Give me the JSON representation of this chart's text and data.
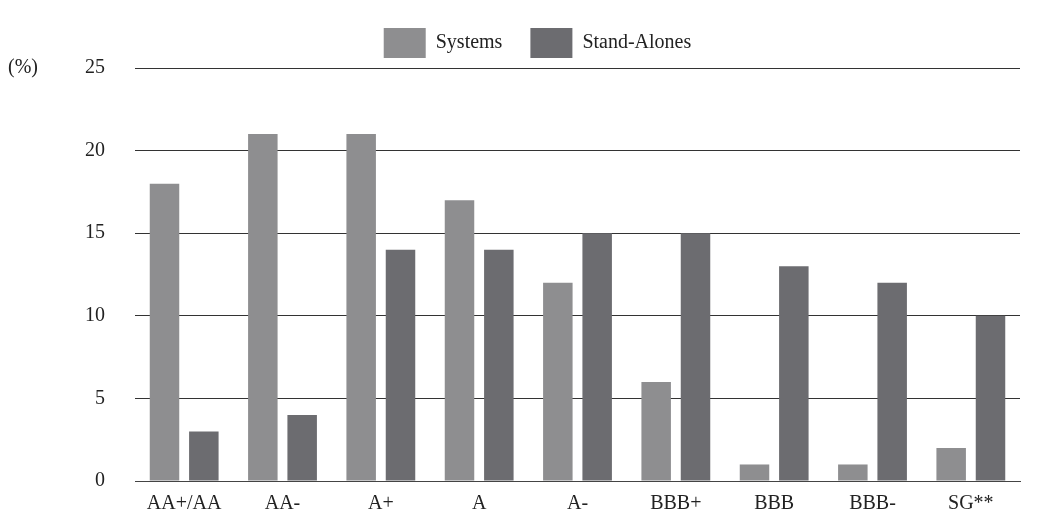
{
  "chart_data": {
    "type": "bar",
    "ylabel": "(%)",
    "categories": [
      "AA+/AA",
      "AA-",
      "A+",
      "A",
      "A-",
      "BBB+",
      "BBB",
      "BBB-",
      "SG**"
    ],
    "series": [
      {
        "name": "Systems",
        "color": "#8e8e90",
        "values": [
          18,
          21,
          21,
          17,
          12,
          6,
          1,
          1,
          2
        ]
      },
      {
        "name": "Stand-Alones",
        "color": "#6c6c70",
        "values": [
          3,
          4,
          14,
          14,
          15,
          15,
          13,
          12,
          10
        ]
      }
    ],
    "ylim": [
      0,
      25
    ],
    "yticks": [
      0,
      5,
      10,
      15,
      20,
      25
    ],
    "grid": "y",
    "legend": "top"
  }
}
